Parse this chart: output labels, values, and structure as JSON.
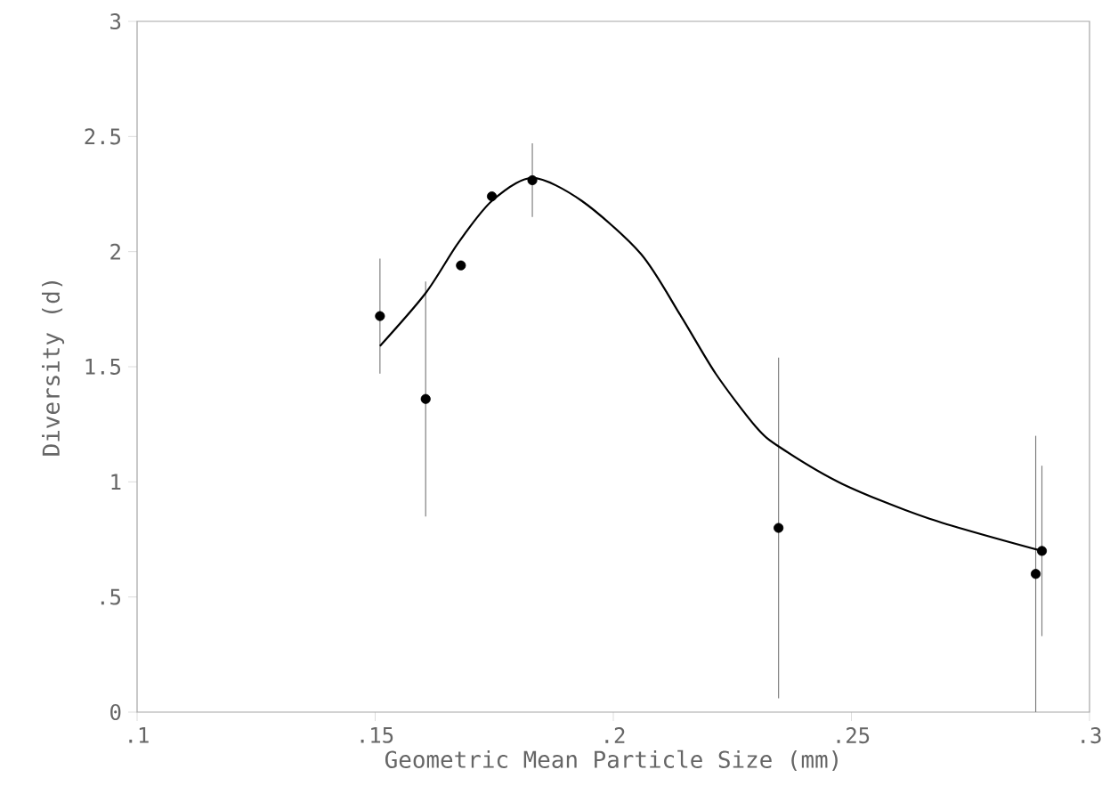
{
  "chart_data": {
    "type": "scatter",
    "xlabel": "Geometric Mean Particle Size (mm)",
    "ylabel": "Diversity (d)",
    "xlim": [
      0.1,
      0.3
    ],
    "ylim": [
      0,
      3
    ],
    "xticks": [
      {
        "value": 0.1,
        "label": ".1"
      },
      {
        "value": 0.15,
        "label": ".15"
      },
      {
        "value": 0.2,
        "label": ".2"
      },
      {
        "value": 0.25,
        "label": ".25"
      },
      {
        "value": 0.3,
        "label": ".3"
      }
    ],
    "yticks": [
      0,
      {
        "value": 0.5,
        "label": ".5"
      },
      1,
      1.5,
      2,
      2.5,
      3
    ],
    "grid": false,
    "series": [
      {
        "marker": "circle",
        "color": "#000000",
        "x": [
          0.151,
          0.1606,
          0.168,
          0.1745,
          0.183,
          0.2347,
          0.29,
          0.2887
        ],
        "values": [
          1.72,
          1.36,
          1.94,
          2.24,
          2.31,
          0.8,
          0.7,
          0.6
        ],
        "errors": [
          0.25,
          0.51,
          null,
          null,
          0.16,
          0.74,
          0.37,
          0.6
        ]
      },
      {
        "type": "line",
        "color": "#000000",
        "marker": "none",
        "line_style": "solid",
        "x": [
          0.151,
          0.1606,
          0.1675,
          0.1745,
          0.183,
          0.1934,
          0.2058,
          0.2142,
          0.2215,
          0.2299,
          0.235,
          0.2482,
          0.2664,
          0.29
        ],
        "values": [
          1.59,
          1.82,
          2.04,
          2.22,
          2.32,
          2.22,
          1.99,
          1.72,
          1.47,
          1.24,
          1.15,
          0.99,
          0.84,
          0.7
        ]
      }
    ]
  }
}
